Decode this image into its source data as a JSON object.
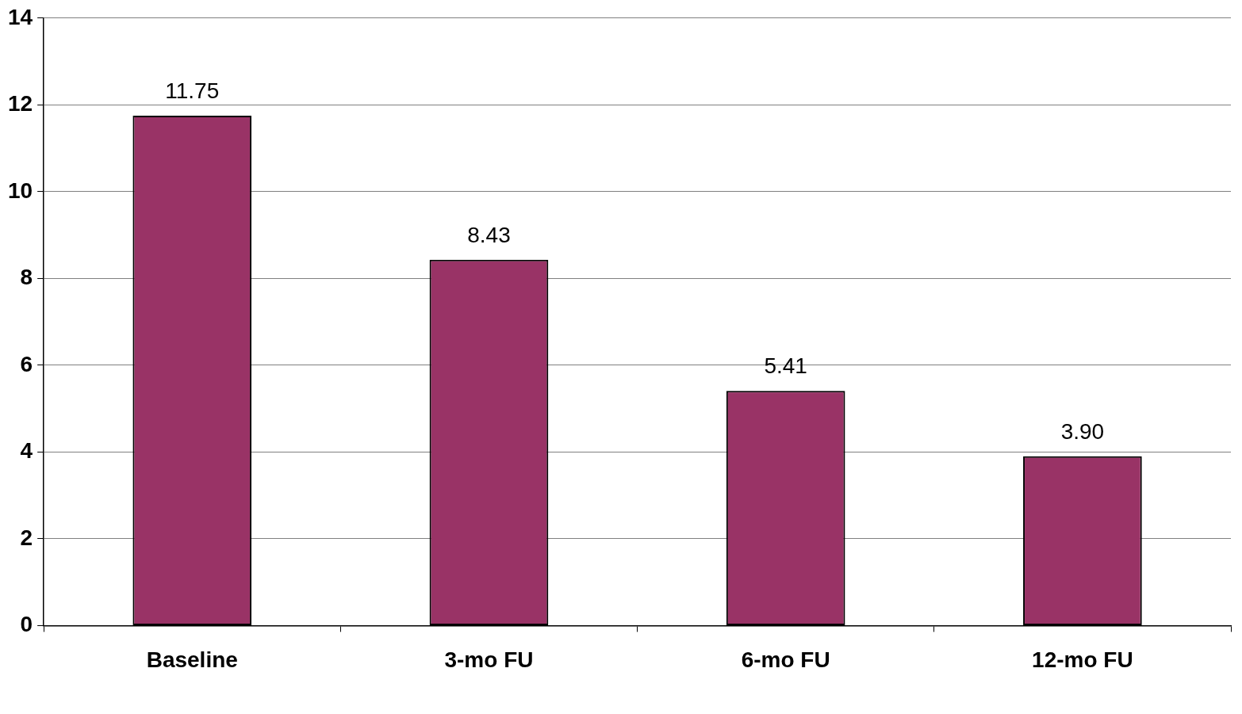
{
  "chart_data": {
    "type": "bar",
    "categories": [
      "Baseline",
      "3-mo FU",
      "6-mo FU",
      "12-mo FU"
    ],
    "values": [
      11.75,
      8.43,
      5.41,
      3.9
    ],
    "value_labels": [
      "11.75",
      "8.43",
      "5.41",
      "3.90"
    ],
    "color": "#993366",
    "ylim": [
      0,
      14
    ],
    "yticks": [
      0,
      2,
      4,
      6,
      8,
      10,
      12,
      14
    ],
    "grid": "y",
    "legend": false
  }
}
